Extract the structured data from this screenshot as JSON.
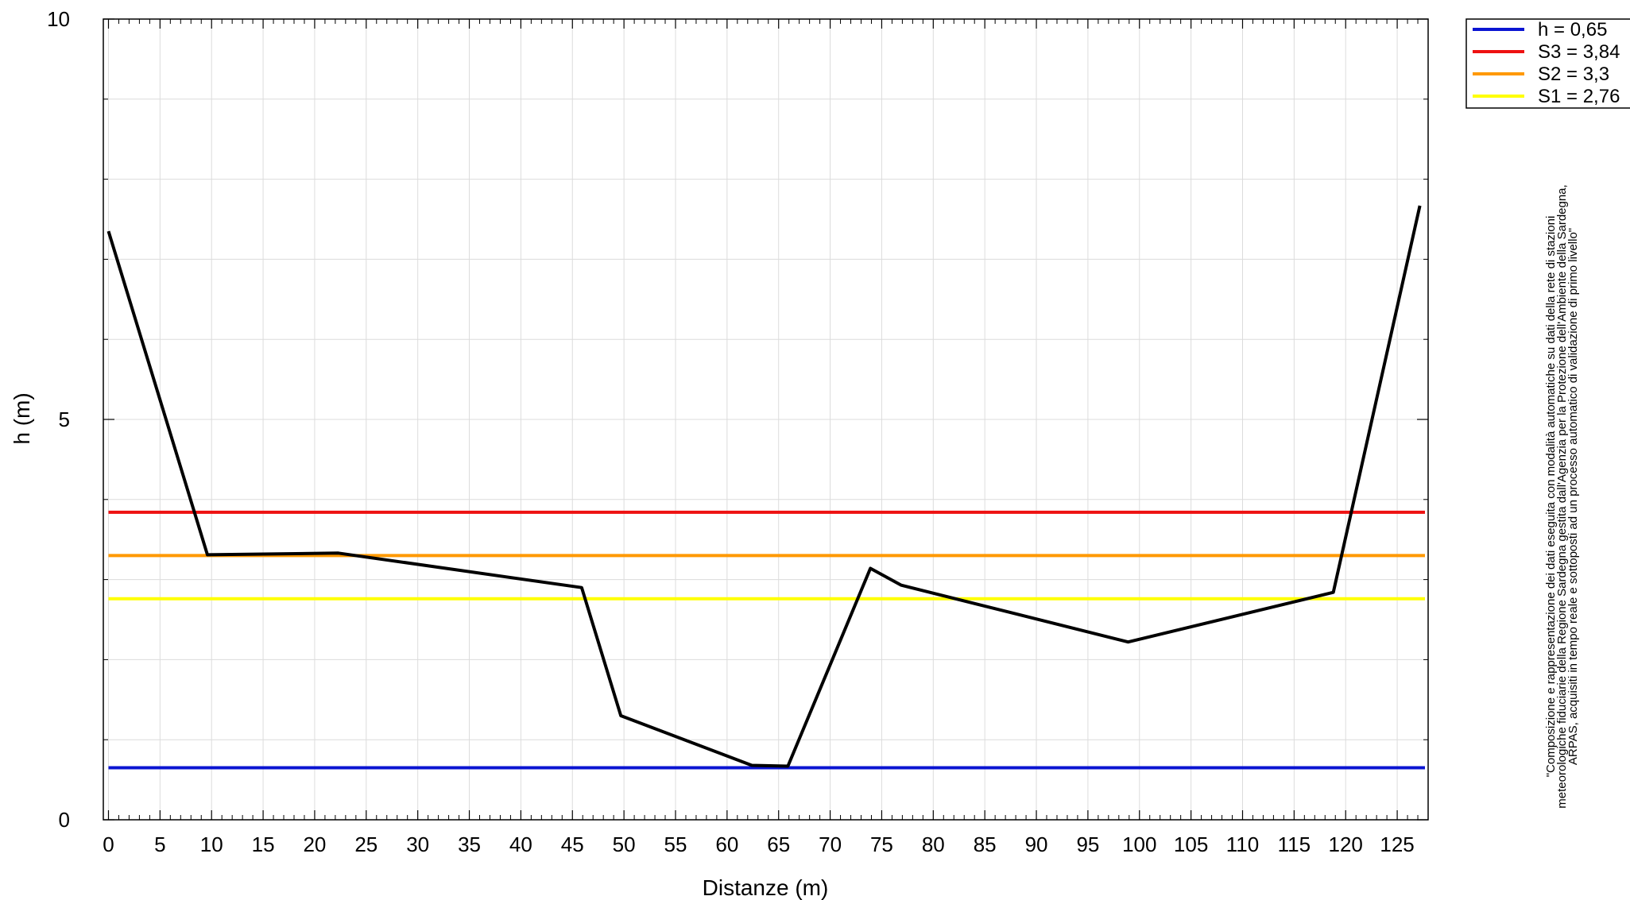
{
  "chart_data": {
    "type": "line",
    "xlabel": "Distanze (m)",
    "ylabel": "h (m)",
    "xlim": [
      -0.5,
      128
    ],
    "ylim": [
      0,
      10
    ],
    "grid": true,
    "legend_position": "top-right, outside plot",
    "x_ticks": [
      0,
      5,
      10,
      15,
      20,
      25,
      30,
      35,
      40,
      45,
      50,
      55,
      60,
      65,
      70,
      75,
      80,
      85,
      90,
      95,
      100,
      105,
      110,
      115,
      120,
      125
    ],
    "y_ticks": [
      0,
      5,
      10
    ],
    "series": [
      {
        "color": "#000000",
        "x": [
          0,
          9.6,
          22.3,
          45.9,
          49.7,
          62.4,
          65.9,
          73.9,
          76.9,
          98.9,
          118.8,
          127.2
        ],
        "y": [
          7.35,
          3.31,
          3.33,
          2.9,
          1.3,
          0.68,
          0.67,
          3.14,
          2.93,
          2.22,
          2.84,
          7.67
        ]
      }
    ],
    "reference_lines": [
      {
        "name": "h = 0,65",
        "value": 0.65,
        "color": "#0a14d2"
      },
      {
        "name": "S3 = 3,84",
        "value": 3.84,
        "color": "#ee1111"
      },
      {
        "name": "S2 = 3,3",
        "value": 3.3,
        "color": "#ff9900"
      },
      {
        "name": "S1 = 2,76",
        "value": 2.76,
        "color": "#ffff00"
      }
    ],
    "note": [
      "\"Composizione e rappresentazione dei dati eseguita con modalità automatiche su dati della rete di stazioni",
      "meteorologiche fiduciarie della Regione Sardegna gestita dall'Agenzia per la Protezione dell'Ambiente della Sardegna,",
      "ARPAS, acquisiti in tempo reale e sottoposti ad un processo automatico di validazione di primo livello\""
    ]
  }
}
